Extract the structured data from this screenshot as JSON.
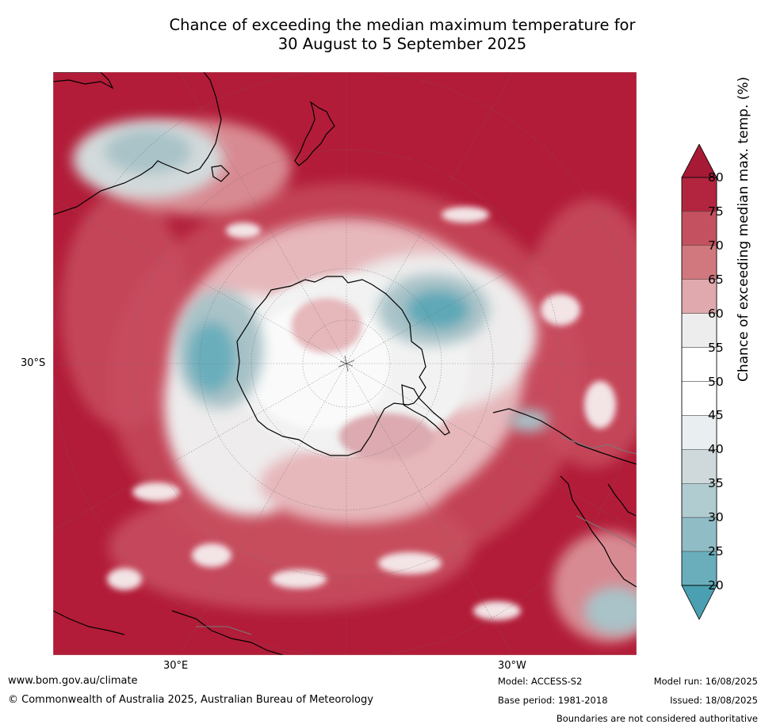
{
  "title_line1": "Chance of exceeding the median maximum temperature for",
  "title_line2": "30 August to 5 September 2025",
  "map": {
    "projection": "south-polar",
    "lat_label": "30°S",
    "lon_labels": [
      "30°E",
      "30°W"
    ],
    "colors": {
      "deep_red": "#b21c38",
      "red": "#c84f60",
      "pink": "#d88a92",
      "light_pink": "#e6b7bb",
      "pale": "#eeecec",
      "white": "#ffffff",
      "light_grey_blue": "#d3dadb",
      "grey_blue": "#a9c3c8",
      "teal": "#6aaebc",
      "deep_teal": "#4a9fb0"
    }
  },
  "colorbar": {
    "title": "Chance of exceeding median max. temp. (%)",
    "ticks": [
      "80",
      "75",
      "70",
      "65",
      "60",
      "55",
      "50",
      "45",
      "40",
      "35",
      "30",
      "25",
      "20"
    ],
    "band_colors": [
      "#b3253f",
      "#c4515f",
      "#d1787f",
      "#dfa9ad",
      "#eeeded",
      "#ffffff",
      "#ffffff",
      "#e9eef0",
      "#cfd9db",
      "#b1ccd0",
      "#90bcc5",
      "#6aaebc"
    ],
    "top_arrow_color": "#a61a35",
    "bottom_arrow_color": "#4aa0b0"
  },
  "footer": {
    "website": "www.bom.gov.au/climate",
    "copyright": "© Commonwealth of Australia 2025, Australian Bureau of Meteorology",
    "model": "Model: ACCESS-S2",
    "base_period": "Base period: 1981-2018",
    "model_run": "Model run: 16/08/2025",
    "issued": "Issued: 18/08/2025",
    "disclaimer": "Boundaries are not considered authoritative"
  }
}
